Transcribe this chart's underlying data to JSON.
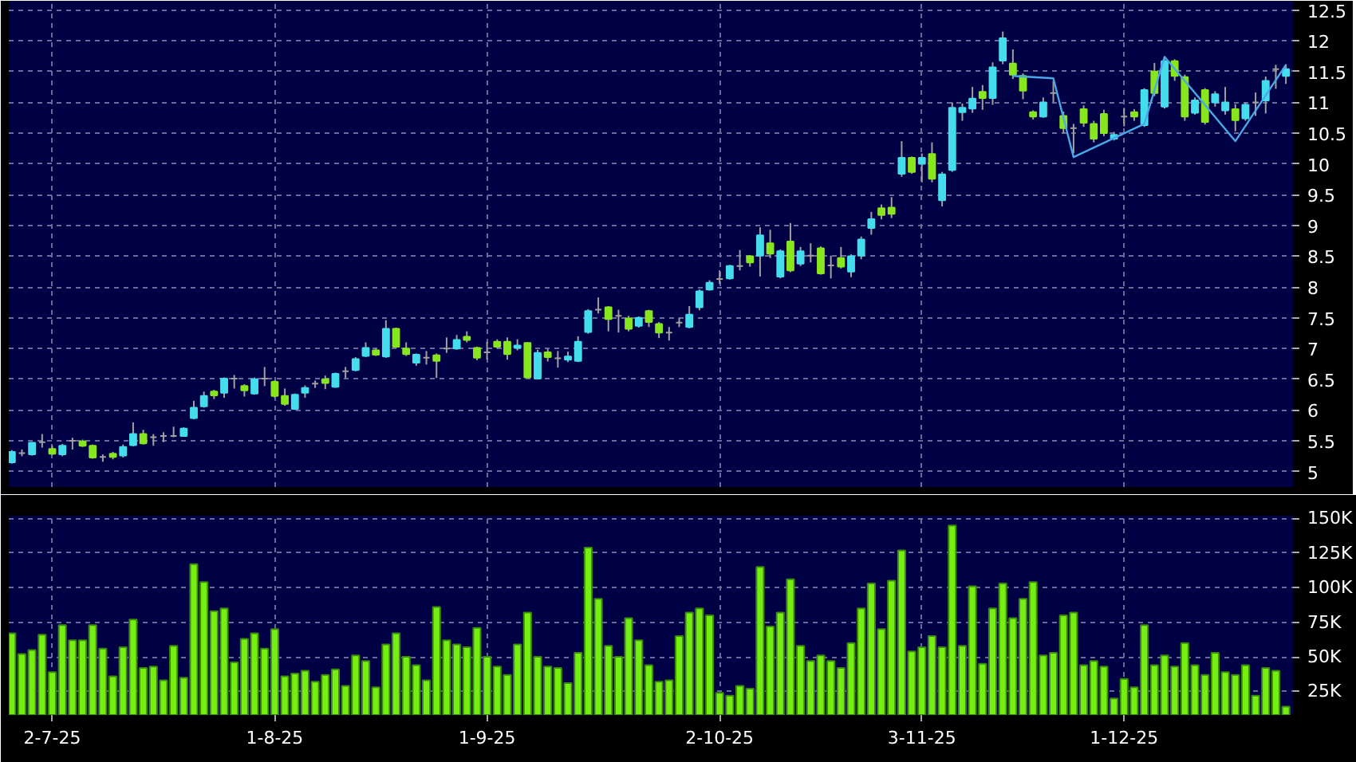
{
  "chart_data": [
    {
      "type": "candlestick",
      "categories": [
        null,
        null,
        null,
        null,
        null,
        null,
        null,
        null,
        null,
        null,
        null,
        null,
        null,
        null,
        null,
        null,
        null,
        null,
        null,
        null,
        null,
        null,
        null,
        null,
        null,
        null,
        null,
        null,
        null,
        null,
        null,
        null,
        null,
        null,
        null,
        null,
        null,
        null,
        null,
        null,
        null,
        null,
        null,
        null,
        null,
        null,
        null,
        null,
        null,
        null,
        null,
        null,
        null,
        null,
        null,
        null,
        null,
        null,
        null,
        null,
        null,
        null,
        null,
        null,
        null,
        null,
        null,
        null,
        null,
        null,
        null,
        null,
        null,
        null,
        null,
        null,
        null,
        null,
        null,
        null,
        null,
        null,
        null,
        null,
        null,
        null,
        null,
        null,
        null,
        null,
        null,
        null,
        null,
        null,
        null,
        null,
        null,
        null,
        null,
        null,
        null,
        null,
        null,
        null,
        null,
        null,
        null,
        null,
        null,
        null,
        null,
        null,
        null,
        null,
        null,
        null,
        null,
        null,
        null,
        null,
        null,
        null,
        null,
        null,
        null,
        null,
        null
      ],
      "ohlc": [
        [
          5.15,
          5.35,
          5.13,
          5.32
        ],
        [
          5.3,
          5.36,
          5.25,
          5.3
        ],
        [
          5.28,
          5.48,
          5.26,
          5.47
        ],
        [
          5.48,
          5.61,
          5.39,
          5.48
        ],
        [
          5.37,
          5.42,
          5.27,
          5.29
        ],
        [
          5.28,
          5.45,
          5.25,
          5.42
        ],
        [
          5.5,
          5.55,
          5.36,
          5.5
        ],
        [
          5.49,
          5.52,
          5.4,
          5.42
        ],
        [
          5.42,
          5.44,
          5.21,
          5.23
        ],
        [
          5.24,
          5.28,
          5.16,
          5.24
        ],
        [
          5.29,
          5.32,
          5.2,
          5.24
        ],
        [
          5.26,
          5.44,
          5.23,
          5.4
        ],
        [
          5.43,
          5.8,
          5.41,
          5.61
        ],
        [
          5.61,
          5.68,
          5.44,
          5.46
        ],
        [
          5.56,
          5.61,
          5.42,
          5.56
        ],
        [
          5.58,
          5.64,
          5.48,
          5.58
        ],
        [
          5.58,
          5.73,
          5.56,
          5.58
        ],
        [
          5.58,
          5.72,
          5.57,
          5.7
        ],
        [
          5.87,
          6.15,
          5.85,
          6.04
        ],
        [
          6.06,
          6.3,
          6.04,
          6.23
        ],
        [
          6.3,
          6.33,
          6.18,
          6.24
        ],
        [
          6.28,
          6.53,
          6.2,
          6.51
        ],
        [
          6.51,
          6.57,
          6.35,
          6.51
        ],
        [
          6.39,
          6.42,
          6.22,
          6.32
        ],
        [
          6.27,
          6.53,
          6.25,
          6.5
        ],
        [
          6.51,
          6.7,
          6.39,
          6.51
        ],
        [
          6.46,
          6.48,
          6.2,
          6.23
        ],
        [
          6.23,
          6.35,
          6.07,
          6.1
        ],
        [
          6.02,
          6.27,
          6.0,
          6.25
        ],
        [
          6.28,
          6.4,
          6.2,
          6.36
        ],
        [
          6.43,
          6.48,
          6.36,
          6.43
        ],
        [
          6.5,
          6.56,
          6.34,
          6.44
        ],
        [
          6.38,
          6.61,
          6.36,
          6.59
        ],
        [
          6.63,
          6.7,
          6.52,
          6.63
        ],
        [
          6.65,
          6.86,
          6.63,
          6.83
        ],
        [
          6.88,
          7.1,
          6.86,
          7.01
        ],
        [
          6.97,
          7.0,
          6.88,
          6.9
        ],
        [
          6.87,
          7.46,
          6.85,
          7.32
        ],
        [
          7.32,
          7.34,
          7.01,
          7.03
        ],
        [
          7.0,
          7.1,
          6.88,
          6.91
        ],
        [
          6.77,
          6.92,
          6.72,
          6.9
        ],
        [
          6.85,
          6.96,
          6.74,
          6.85
        ],
        [
          6.89,
          6.92,
          6.52,
          6.8
        ],
        [
          7.0,
          7.18,
          6.93,
          7.0
        ],
        [
          7.0,
          7.22,
          6.98,
          7.14
        ],
        [
          7.19,
          7.28,
          7.1,
          7.14
        ],
        [
          7.01,
          7.03,
          6.81,
          6.85
        ],
        [
          6.94,
          7.11,
          6.82,
          6.94
        ],
        [
          7.11,
          7.15,
          7.0,
          7.03
        ],
        [
          7.11,
          7.18,
          6.82,
          6.91
        ],
        [
          7.01,
          7.15,
          6.97,
          7.05
        ],
        [
          7.09,
          7.1,
          6.52,
          6.53
        ],
        [
          6.51,
          6.98,
          6.5,
          6.93
        ],
        [
          6.94,
          6.99,
          6.79,
          6.86
        ],
        [
          6.84,
          6.96,
          6.69,
          6.84
        ],
        [
          6.82,
          6.95,
          6.78,
          6.87
        ],
        [
          6.8,
          7.2,
          6.78,
          7.11
        ],
        [
          7.27,
          7.64,
          7.24,
          7.61
        ],
        [
          7.63,
          7.83,
          7.57,
          7.63
        ],
        [
          7.67,
          7.69,
          7.28,
          7.48
        ],
        [
          7.53,
          7.63,
          7.26,
          7.53
        ],
        [
          7.49,
          7.53,
          7.28,
          7.32
        ],
        [
          7.37,
          7.52,
          7.34,
          7.5
        ],
        [
          7.61,
          7.63,
          7.35,
          7.43
        ],
        [
          7.4,
          7.43,
          7.17,
          7.26
        ],
        [
          7.26,
          7.35,
          7.13,
          7.26
        ],
        [
          7.42,
          7.5,
          7.35,
          7.42
        ],
        [
          7.35,
          7.69,
          7.33,
          7.55
        ],
        [
          7.67,
          7.96,
          7.62,
          7.93
        ],
        [
          7.96,
          8.11,
          7.94,
          8.07
        ],
        [
          8.13,
          8.27,
          8.05,
          8.13
        ],
        [
          8.14,
          8.36,
          8.12,
          8.34
        ],
        [
          8.34,
          8.6,
          8.27,
          8.34
        ],
        [
          8.5,
          8.52,
          8.33,
          8.4
        ],
        [
          8.51,
          8.97,
          8.17,
          8.84
        ],
        [
          8.71,
          8.93,
          8.47,
          8.54
        ],
        [
          8.17,
          8.61,
          8.14,
          8.58
        ],
        [
          8.74,
          9.04,
          8.24,
          8.27
        ],
        [
          8.38,
          8.65,
          8.34,
          8.58
        ],
        [
          8.51,
          8.71,
          8.4,
          8.51
        ],
        [
          8.63,
          8.66,
          8.2,
          8.22
        ],
        [
          8.35,
          8.51,
          8.14,
          8.35
        ],
        [
          8.47,
          8.65,
          8.3,
          8.33
        ],
        [
          8.25,
          8.53,
          8.16,
          8.5
        ],
        [
          8.51,
          8.82,
          8.45,
          8.77
        ],
        [
          8.96,
          9.22,
          8.85,
          9.1
        ],
        [
          9.28,
          9.34,
          9.1,
          9.17
        ],
        [
          9.29,
          9.46,
          9.12,
          9.19
        ],
        [
          9.84,
          10.37,
          9.79,
          10.1
        ],
        [
          10.1,
          10.12,
          9.84,
          9.87
        ],
        [
          10.0,
          10.17,
          9.7,
          10.1
        ],
        [
          10.16,
          10.35,
          9.7,
          9.76
        ],
        [
          9.41,
          9.87,
          9.31,
          9.83
        ],
        [
          9.9,
          11.0,
          9.87,
          10.91
        ],
        [
          10.84,
          10.98,
          10.7,
          10.91
        ],
        [
          10.9,
          11.25,
          10.83,
          11.06
        ],
        [
          11.17,
          11.28,
          10.88,
          11.07
        ],
        [
          11.07,
          11.65,
          10.96,
          11.57
        ],
        [
          11.68,
          12.15,
          11.62,
          12.04
        ],
        [
          11.63,
          11.86,
          11.38,
          11.45
        ],
        [
          11.43,
          11.47,
          11.05,
          11.19
        ],
        [
          10.84,
          10.87,
          10.72,
          10.77
        ],
        [
          10.77,
          11.08,
          10.75,
          11.0
        ],
        [
          11.15,
          11.35,
          11.0,
          11.15
        ],
        [
          10.78,
          10.85,
          10.5,
          10.58
        ],
        [
          10.58,
          10.65,
          10.17,
          10.58
        ],
        [
          10.89,
          10.95,
          10.6,
          10.67
        ],
        [
          10.65,
          10.7,
          10.35,
          10.41
        ],
        [
          10.81,
          10.88,
          10.45,
          10.5
        ],
        [
          10.41,
          10.52,
          10.38,
          10.47
        ],
        [
          10.77,
          10.91,
          10.61,
          10.77
        ],
        [
          10.84,
          10.89,
          10.7,
          10.77
        ],
        [
          10.63,
          11.23,
          10.6,
          11.2
        ],
        [
          11.5,
          11.64,
          11.1,
          11.15
        ],
        [
          10.93,
          11.7,
          10.9,
          11.67
        ],
        [
          11.67,
          11.7,
          11.35,
          11.43
        ],
        [
          11.41,
          11.45,
          10.7,
          10.77
        ],
        [
          10.83,
          11.08,
          10.8,
          11.03
        ],
        [
          11.2,
          11.23,
          10.64,
          10.68
        ],
        [
          11.0,
          11.18,
          10.93,
          11.13
        ],
        [
          10.87,
          11.25,
          10.8,
          11.0
        ],
        [
          10.89,
          10.97,
          10.53,
          10.71
        ],
        [
          10.74,
          11.0,
          10.7,
          10.96
        ],
        [
          11.0,
          11.16,
          10.78,
          11.0
        ],
        [
          11.03,
          11.42,
          10.82,
          11.35
        ],
        [
          11.54,
          11.61,
          11.22,
          11.54
        ],
        [
          11.43,
          11.62,
          11.3,
          11.54
        ]
      ],
      "colors": [
        "#44ddee",
        "#a0a0a0",
        "#44ddee",
        "#a0a0a0",
        "#88e61e",
        "#44ddee",
        "#a0a0a0",
        "#88e61e",
        "#88e61e",
        "#a0a0a0",
        "#88e61e",
        "#44ddee",
        "#44ddee",
        "#88e61e",
        "#a0a0a0",
        "#a0a0a0",
        "#a0a0a0",
        "#44ddee",
        "#44ddee",
        "#44ddee",
        "#88e61e",
        "#44ddee",
        "#a0a0a0",
        "#88e61e",
        "#44ddee",
        "#a0a0a0",
        "#88e61e",
        "#88e61e",
        "#44ddee",
        "#44ddee",
        "#a0a0a0",
        "#88e61e",
        "#44ddee",
        "#a0a0a0",
        "#44ddee",
        "#44ddee",
        "#88e61e",
        "#44ddee",
        "#88e61e",
        "#88e61e",
        "#44ddee",
        "#a0a0a0",
        "#88e61e",
        "#a0a0a0",
        "#44ddee",
        "#88e61e",
        "#88e61e",
        "#a0a0a0",
        "#88e61e",
        "#88e61e",
        "#44ddee",
        "#88e61e",
        "#44ddee",
        "#88e61e",
        "#a0a0a0",
        "#44ddee",
        "#44ddee",
        "#44ddee",
        "#a0a0a0",
        "#88e61e",
        "#a0a0a0",
        "#88e61e",
        "#44ddee",
        "#88e61e",
        "#88e61e",
        "#a0a0a0",
        "#a0a0a0",
        "#44ddee",
        "#44ddee",
        "#44ddee",
        "#a0a0a0",
        "#44ddee",
        "#a0a0a0",
        "#88e61e",
        "#44ddee",
        "#88e61e",
        "#44ddee",
        "#88e61e",
        "#44ddee",
        "#a0a0a0",
        "#88e61e",
        "#a0a0a0",
        "#88e61e",
        "#44ddee",
        "#44ddee",
        "#44ddee",
        "#88e61e",
        "#88e61e",
        "#44ddee",
        "#88e61e",
        "#44ddee",
        "#88e61e",
        "#44ddee",
        "#44ddee",
        "#44ddee",
        "#44ddee",
        "#88e61e",
        "#44ddee",
        "#44ddee",
        "#88e61e",
        "#88e61e",
        "#88e61e",
        "#44ddee",
        "#a0a0a0",
        "#88e61e",
        "#a0a0a0",
        "#88e61e",
        "#88e61e",
        "#88e61e",
        "#44ddee",
        "#a0a0a0",
        "#88e61e",
        "#44ddee",
        "#88e61e",
        "#44ddee",
        "#88e61e",
        "#88e61e",
        "#44ddee",
        "#88e61e",
        "#44ddee",
        "#44ddee",
        "#88e61e",
        "#44ddee",
        "#a0a0a0",
        "#44ddee",
        "#a0a0a0",
        "#44ddee"
      ],
      "series": [
        {
          "type": "line",
          "color": "#4aa8e8",
          "values": [
            null,
            null,
            null,
            null,
            null,
            null,
            null,
            null,
            null,
            null,
            null,
            null,
            null,
            null,
            null,
            null,
            null,
            null,
            null,
            null,
            null,
            null,
            null,
            null,
            null,
            null,
            null,
            null,
            null,
            null,
            null,
            null,
            null,
            null,
            null,
            null,
            null,
            null,
            null,
            null,
            null,
            null,
            null,
            null,
            null,
            null,
            null,
            null,
            null,
            null,
            null,
            null,
            null,
            null,
            null,
            null,
            null,
            null,
            null,
            null,
            null,
            null,
            null,
            null,
            null,
            null,
            null,
            null,
            null,
            null,
            null,
            null,
            null,
            null,
            null,
            null,
            null,
            null,
            null,
            null,
            null,
            null,
            null,
            null,
            null,
            null,
            null,
            null,
            null,
            null,
            null,
            null,
            null,
            null,
            null,
            null,
            null,
            null,
            null,
            11.43,
            null,
            null,
            null,
            11.39,
            null,
            10.11,
            null,
            null,
            null,
            null,
            null,
            null,
            10.65,
            null,
            11.74,
            null,
            null,
            null,
            null,
            null,
            null,
            10.37,
            null,
            null,
            null,
            null,
            11.61
          ]
        }
      ],
      "ylim": [
        4.75,
        12.65
      ],
      "yticks": [
        5,
        5.5,
        6,
        6.5,
        7,
        7.5,
        8,
        8.5,
        9,
        9.5,
        10,
        10.5,
        11,
        11.5,
        12,
        12.5
      ],
      "grid": true,
      "tick_labels": "y"
    },
    {
      "type": "bar",
      "color": "#77ee11",
      "categories": [
        null,
        null,
        null,
        null,
        "2-7-25",
        null,
        null,
        null,
        null,
        null,
        null,
        null,
        null,
        null,
        null,
        null,
        null,
        null,
        null,
        null,
        null,
        null,
        null,
        null,
        null,
        null,
        "1-8-25",
        null,
        null,
        null,
        null,
        null,
        null,
        null,
        null,
        null,
        null,
        null,
        null,
        null,
        null,
        null,
        null,
        null,
        null,
        null,
        null,
        "1-9-25",
        null,
        null,
        null,
        null,
        null,
        null,
        null,
        null,
        null,
        null,
        null,
        null,
        null,
        null,
        null,
        null,
        null,
        null,
        null,
        null,
        null,
        null,
        "2-10-25",
        null,
        null,
        null,
        null,
        null,
        null,
        null,
        null,
        null,
        null,
        null,
        null,
        null,
        null,
        null,
        null,
        null,
        null,
        null,
        "3-11-25",
        null,
        null,
        null,
        null,
        null,
        null,
        null,
        null,
        null,
        null,
        null,
        null,
        null,
        null,
        null,
        null,
        null,
        null,
        null,
        "1-12-25",
        null,
        null,
        null,
        null,
        null,
        null,
        null,
        null,
        null,
        null,
        null,
        null,
        null,
        null,
        null,
        null
      ],
      "values": [
        67000,
        52000,
        55000,
        66000,
        39000,
        73000,
        62000,
        62000,
        73000,
        56000,
        36000,
        57000,
        77000,
        42000,
        43000,
        33000,
        58000,
        35000,
        117000,
        104000,
        83000,
        85000,
        46000,
        63000,
        67000,
        56000,
        70000,
        36000,
        38000,
        40000,
        32000,
        37000,
        41000,
        29000,
        51000,
        47000,
        28000,
        59000,
        67000,
        50000,
        44000,
        33000,
        86000,
        62000,
        59000,
        57000,
        71000,
        50000,
        43000,
        37000,
        59000,
        82000,
        50000,
        43000,
        42000,
        31000,
        53000,
        129000,
        92000,
        58000,
        50000,
        78000,
        62000,
        44000,
        32000,
        33000,
        65000,
        82000,
        85000,
        80000,
        24000,
        22000,
        29000,
        27000,
        115000,
        72000,
        82000,
        106000,
        58000,
        47000,
        51000,
        47000,
        42000,
        60000,
        85000,
        103000,
        70000,
        105000,
        127000,
        54000,
        57000,
        65000,
        57000,
        145000,
        58000,
        101000,
        45000,
        85000,
        103000,
        78000,
        92000,
        104000,
        51000,
        53000,
        80000,
        82000,
        44000,
        47000,
        43000,
        20000,
        34000,
        28000,
        73000,
        44000,
        51000,
        43000,
        60000,
        44000,
        37000,
        53000,
        39000,
        37000,
        44000,
        22000,
        42000,
        40000,
        14000
      ],
      "ylim": [
        8000,
        152000
      ],
      "yticks": [
        {
          "value": 25000,
          "label": "25K"
        },
        {
          "value": 50000,
          "label": "50K"
        },
        {
          "value": 75000,
          "label": "75K"
        },
        {
          "value": 100000,
          "label": "100K"
        },
        {
          "value": 125000,
          "label": "125K"
        },
        {
          "value": 150000,
          "label": "150K"
        }
      ],
      "grid": true
    }
  ]
}
